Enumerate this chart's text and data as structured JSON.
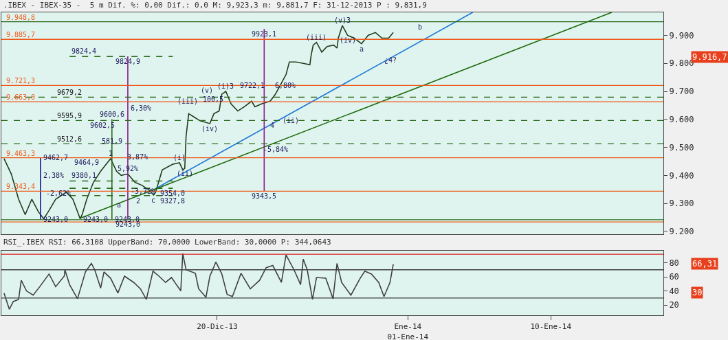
{
  "chart_data": [
    {
      "type": "line",
      "title": ".IBEX - IBEX-35 -  5 m Dif. %: 0,00 Dif.: 0,0 M: 9,923,3 m: 9,881,7 F: 31-12-2013 P : 9,831,9",
      "xlim": [
        "2013-12-06T10:00",
        "2014-01-17T02:00"
      ],
      "ylim": [
        9190,
        9982
      ],
      "yticks": [
        {
          "value": 9200,
          "label": "9.200"
        },
        {
          "value": 9300,
          "label": "9.300"
        },
        {
          "value": 9400,
          "label": "9.400"
        },
        {
          "value": 9500,
          "label": "9.500"
        },
        {
          "value": 9600,
          "label": "9.600"
        },
        {
          "value": 9700,
          "label": "9.700"
        },
        {
          "value": 9800,
          "label": "9.800"
        },
        {
          "value": 9900,
          "label": "9.900"
        }
      ],
      "tick_labels": "y",
      "grid": false,
      "series": [
        {
          "color": "#1d3d1d",
          "x": [
            "2013-12-06T14:00",
            "2013-12-07T01:00",
            "2013-12-07T12:00",
            "2013-12-07T22:00",
            "2013-12-08T08:00",
            "2013-12-08T18:00",
            "2013-12-09T02:00",
            "2013-12-09T10:00",
            "2013-12-09T20:00",
            "2013-12-10T12:00",
            "2013-12-10T22:00",
            "2013-12-11T09:00",
            "2013-12-11T12:00",
            "2013-12-11T19:00",
            "2013-12-12T05:00",
            "2013-12-12T16:00",
            "2013-12-13T02:00",
            "2013-12-13T07:00",
            "2013-12-13T16:00",
            "2013-12-13T23:00",
            "2013-12-14T09:00",
            "2013-12-14T20:00",
            "2013-12-15T06:00",
            "2013-12-15T16:00",
            "2013-12-16T00:00",
            "2013-12-16T03:00",
            "2013-12-16T13:00",
            "2013-12-17T05:00",
            "2013-12-17T15:00",
            "2013-12-17T20:00",
            "2013-12-17T23:00",
            "2013-12-18T01:00",
            "2013-12-18T05:00",
            "2013-12-18T12:00",
            "2013-12-18T22:00",
            "2013-12-19T13:00",
            "2013-12-19T19:00",
            "2013-12-20T03:00",
            "2013-12-20T07:00",
            "2013-12-20T13:00",
            "2013-12-20T21:00",
            "2013-12-21T07:00",
            "2013-12-21T17:00",
            "2013-12-22T04:00",
            "2013-12-22T09:00",
            "2013-12-22T19:00",
            "2013-12-23T08:00",
            "2013-12-23T16:00",
            "2013-12-24T00:00",
            "2013-12-24T08:00",
            "2013-12-24T13:00",
            "2013-12-24T23:00",
            "2013-12-25T10:00",
            "2013-12-25T20:00",
            "2013-12-25T22:00",
            "2013-12-26T01:00",
            "2013-12-26T06:00",
            "2013-12-26T14:00",
            "2013-12-26T22:00",
            "2013-12-27T08:00",
            "2013-12-27T13:00",
            "2013-12-27T15:00",
            "2013-12-27T21:00",
            "2013-12-28T05:00",
            "2013-12-28T15:00",
            "2013-12-29T02:00",
            "2013-12-29T12:00",
            "2013-12-29T23:00",
            "2013-12-30T09:00",
            "2013-12-30T19:00",
            "2013-12-31T02:00"
          ],
          "values": [
            9460,
            9405,
            9315,
            9260,
            9315,
            9270,
            9245,
            9275,
            9315,
            9340,
            9315,
            9245,
            9260,
            9315,
            9375,
            9415,
            9445,
            9460,
            9415,
            9400,
            9405,
            9375,
            9365,
            9350,
            9330,
            9340,
            9420,
            9440,
            9445,
            9420,
            9425,
            9540,
            9620,
            9610,
            9595,
            9585,
            9620,
            9630,
            9690,
            9700,
            9655,
            9630,
            9645,
            9665,
            9645,
            9655,
            9665,
            9690,
            9725,
            9760,
            9805,
            9805,
            9800,
            9795,
            9830,
            9865,
            9875,
            9840,
            9860,
            9865,
            9855,
            9890,
            9935,
            9900,
            9890,
            9870,
            9900,
            9910,
            9890,
            9890,
            9910
          ]
        },
        {
          "color": "#1e78d8",
          "x": [
            "2013-12-15T17:00",
            "2014-01-05T02:00"
          ],
          "values": [
            9340,
            9982
          ]
        },
        {
          "color": "#1f6b0f",
          "x": [
            "2013-12-11T09:00",
            "2014-01-13T20:00"
          ],
          "values": [
            9247,
            9982
          ]
        },
        {
          "color": "#8b1a8b",
          "x": [
            "2013-12-22T23:00",
            "2013-12-22T23:00"
          ],
          "values": [
            9923.1,
            9343.5
          ]
        },
        {
          "color": "#8b1a8b",
          "x": [
            "2013-12-14T09:00",
            "2013-12-14T09:00"
          ],
          "values": [
            9824.9,
            9243.0
          ]
        },
        {
          "color": "#1a1a9a",
          "x": [
            "2013-12-08T21:00",
            "2013-12-08T21:00"
          ],
          "values": [
            9462.7,
            9243.0
          ]
        },
        {
          "color": "#2a6a1a",
          "x": [
            "2013-12-13T09:00",
            "2013-12-13T09:00"
          ],
          "values": [
            9600.6,
            9243.0
          ]
        },
        {
          "color": "#2a6a1a",
          "line_style": "dashed",
          "x": [
            "2013-12-10T17:00",
            "2013-12-17T05:00"
          ],
          "values": [
            9824.4,
            9824.4
          ]
        },
        {
          "color": "#2a6a1a",
          "line_style": "dashed",
          "x": [
            "2013-12-10T17:00",
            "2013-12-17T05:00"
          ],
          "values": [
            9380.1,
            9380.1
          ]
        },
        {
          "color": "#2a6a1a",
          "line_style": "dashed",
          "x": [
            "2013-12-10T17:00",
            "2013-12-17T05:00"
          ],
          "values": [
            9354.0,
            9354.0
          ]
        },
        {
          "color": "#2a6a1a",
          "line_style": "dashed",
          "x": [
            "2013-12-10T17:00",
            "2013-12-17T05:00"
          ],
          "values": [
            9327.8,
            9327.8
          ]
        }
      ],
      "ref_lines": [
        {
          "axis": "y",
          "value": 9948.8,
          "label": "9.948,8",
          "color": "#2a6a1a",
          "line_style": "solid"
        },
        {
          "axis": "y",
          "value": 9885.7,
          "label": "9.885,7",
          "color": "#f05a1a",
          "line_style": "solid"
        },
        {
          "axis": "y",
          "value": 9721.3,
          "label": "9.721,3",
          "color": "#f05a1a",
          "line_style": "solid"
        },
        {
          "axis": "y",
          "value": 9679.2,
          "label": "9679,2",
          "color": "#2a6a1a",
          "line_style": "dashed"
        },
        {
          "axis": "y",
          "value": 9663.0,
          "label": "9.663,0",
          "color": "#f05a1a",
          "line_style": "solid"
        },
        {
          "axis": "y",
          "value": 9595.9,
          "label": "9595,9",
          "color": "#2a6a1a",
          "line_style": "dashed"
        },
        {
          "axis": "y",
          "value": 9512.6,
          "label": "9512,6",
          "color": "#2a6a1a",
          "line_style": "dashed"
        },
        {
          "axis": "y",
          "value": 9463.3,
          "label": "9.463,3",
          "color": "#f05a1a",
          "line_style": "solid"
        },
        {
          "axis": "y",
          "value": 9343.4,
          "label": "9.343,4",
          "color": "#f05a1a",
          "line_style": "solid"
        },
        {
          "axis": "y",
          "value": 9242,
          "label": null,
          "color": "#2a6a1a",
          "line_style": "solid"
        },
        {
          "axis": "y",
          "value": 9234,
          "label": null,
          "color": "#f05a1a",
          "line_style": "solid"
        }
      ],
      "annotations": [
        {
          "text": "(v)3",
          "x": "2013-12-27T21:00",
          "y": 9935
        },
        {
          "text": "b",
          "x": "2014-01-01T18:00",
          "y": 9948.8
        },
        {
          "text": "(iii)",
          "x": "2013-12-26T06:00",
          "y": 9875
        },
        {
          "text": "(iv)",
          "x": "2013-12-28T05:00",
          "y": 9900
        },
        {
          "text": "a",
          "x": "2013-12-29T02:00",
          "y": 9870
        },
        {
          "text": "¿4?",
          "x": "2013-12-30T22:00",
          "y": 9830
        },
        {
          "text": "9923,1",
          "x": "2013-12-22T23:00",
          "y": 9923.1
        },
        {
          "text": "(i)3",
          "x": "2013-12-20T13:00",
          "y": 9700
        },
        {
          "text": "(v)",
          "x": "2013-12-19T08:00",
          "y": 9721.3
        },
        {
          "text": "9722,1",
          "x": "2013-12-21T06:00",
          "y": 9722
        },
        {
          "text": "6,80%",
          "x": "2013-12-23T11:00",
          "y": 9722
        },
        {
          "text": "(iii)",
          "x": "2013-12-18T03:00",
          "y": 9683
        },
        {
          "text": "100,5",
          "x": "2013-12-19T18:00",
          "y": 9690
        },
        {
          "text": "4",
          "x": "2013-12-23T11:00",
          "y": 9597
        },
        {
          "text": "(ii)",
          "x": "2013-12-23T23:00",
          "y": 9597
        },
        {
          "text": "(iv)",
          "x": "2013-12-19T13:00",
          "y": 9585
        },
        {
          "text": "-5,84%",
          "x": "2013-12-23T16:00",
          "y": 9512
        },
        {
          "text": "9343,5",
          "x": "2013-12-22T23:00",
          "y": 9343.5
        },
        {
          "text": "9824,9",
          "x": "2013-12-14T09:00",
          "y": 9824.9
        },
        {
          "text": "9824,4",
          "x": "2013-12-10T17:00",
          "y": 9824.4
        },
        {
          "text": "9602,5",
          "x": "2013-12-12T19:00",
          "y": 9595.9
        },
        {
          "text": "9600,6",
          "x": "2013-12-13T09:00",
          "y": 9600.6
        },
        {
          "text": "6,30%",
          "x": "2013-12-14T09:00",
          "y": 9640
        },
        {
          "text": "581,9",
          "x": "2013-12-13T09:00",
          "y": 9540
        },
        {
          "text": "9464,9",
          "x": "2013-12-11T19:00",
          "y": 9465
        },
        {
          "text": "1",
          "x": "2013-12-13T07:00",
          "y": 9460
        },
        {
          "text": "3,87%",
          "x": "2013-12-14T04:00",
          "y": 9465
        },
        {
          "text": "(i)",
          "x": "2013-12-17T15:00",
          "y": 9445
        },
        {
          "text": "(ii)",
          "x": "2013-12-17T23:00",
          "y": 9425
        },
        {
          "text": "9462,7",
          "x": "2013-12-08T21:00",
          "y": 9462.7
        },
        {
          "text": "2,38%",
          "x": "2013-12-08T21:00",
          "y": 9400
        },
        {
          "text": "-2,62%",
          "x": "2013-12-10T00:00",
          "y": 9318
        },
        {
          "text": "9380,1",
          "x": "2013-12-10T17:00",
          "y": 9380.1
        },
        {
          "text": "9354,0",
          "x": "2013-12-17T05:00",
          "y": 9354.0
        },
        {
          "text": "9327,8",
          "x": "2013-12-17T05:00",
          "y": 9327.8
        },
        {
          "text": "a",
          "x": "2013-12-13T20:00",
          "y": 9312
        },
        {
          "text": "-3,72%",
          "x": "2013-12-14T09:00",
          "y": 9343
        },
        {
          "text": "5,92%",
          "x": "2013-12-14T09:00",
          "y": 9405
        },
        {
          "text": "2",
          "x": "2013-12-15T01:00",
          "y": 9327.6
        },
        {
          "text": "c",
          "x": "2013-12-16T00:00",
          "y": 9330
        },
        {
          "text": "9243,0",
          "x": "2013-12-08T21:00",
          "y": 9243.0
        },
        {
          "text": "9243,0",
          "x": "2013-12-11T09:00",
          "y": 9242
        },
        {
          "text": "9243,0",
          "x": "2013-12-13T09:00",
          "y": 9243.0
        },
        {
          "text": "9243,0",
          "x": "2013-12-14T09:00",
          "y": 9243.0
        },
        "9.916,7"
      ]
    },
    {
      "type": "line",
      "title": "RSI_.IBEX RSI: 66,3108 UpperBand: 70,0000 LowerBand: 30,0000 P: 344,0643",
      "xlim": [
        "2013-12-06T10:00",
        "2014-01-17T02:00"
      ],
      "xticks": [
        {
          "value": "2013-12-20",
          "label": "20-Dic-13"
        },
        {
          "value": "2014-01-01",
          "label": "Ene-14\n01-Ene-14"
        },
        {
          "value": "2014-01-10",
          "label": "10-Ene-14"
        }
      ],
      "ylim": [
        5.5,
        97
      ],
      "yticks": [
        20,
        40,
        60,
        80
      ],
      "grid": false,
      "series": [
        {
          "color": "#404040",
          "x": [
            "2013-12-06T14:00",
            "2013-12-06T22:00",
            "2013-12-07T04:00",
            "2013-12-07T12:00",
            "2013-12-07T16:00",
            "2013-12-08T00:00",
            "2013-12-08T10:00",
            "2013-12-08T20:00",
            "2013-12-09T10:00",
            "2013-12-09T20:00",
            "2013-12-10T09:00",
            "2013-12-10T10:00",
            "2013-12-10T17:00",
            "2013-12-11T05:00",
            "2013-12-11T17:00",
            "2013-12-12T02:00",
            "2013-12-12T07:00",
            "2013-12-12T16:00",
            "2013-12-12T21:00",
            "2013-12-13T07:00",
            "2013-12-13T18:00",
            "2013-12-14T04:00",
            "2013-12-14T18:00",
            "2013-12-15T04:00",
            "2013-12-15T13:00",
            "2013-12-15T23:00",
            "2013-12-16T08:00",
            "2013-12-16T18:00",
            "2013-12-17T03:00",
            "2013-12-17T17:00",
            "2013-12-17T20:00",
            "2013-12-18T01:00",
            "2013-12-18T15:00",
            "2013-12-18T20:00",
            "2013-12-19T07:00",
            "2013-12-19T13:00",
            "2013-12-19T22:00",
            "2013-12-20T07:00",
            "2013-12-20T15:00",
            "2013-12-20T23:00",
            "2013-12-21T12:00",
            "2013-12-22T02:00",
            "2013-12-22T16:00",
            "2013-12-23T02:00",
            "2013-12-23T12:00",
            "2013-12-24T01:00",
            "2013-12-24T08:00",
            "2013-12-24T20:00",
            "2013-12-25T06:00",
            "2013-12-25T10:00",
            "2013-12-25T16:00",
            "2013-12-26T00:00",
            "2013-12-26T06:00",
            "2013-12-26T20:00",
            "2013-12-27T07:00",
            "2013-12-27T13:00",
            "2013-12-27T20:00",
            "2013-12-28T10:00",
            "2013-12-29T00:00",
            "2013-12-29T07:00",
            "2013-12-29T17:00",
            "2013-12-30T04:00",
            "2013-12-30T12:00",
            "2013-12-30T21:00",
            "2013-12-31T02:00"
          ],
          "values": [
            37,
            14,
            25,
            28,
            55,
            40,
            34,
            46,
            64,
            46,
            61,
            70,
            49,
            29,
            67,
            79,
            70,
            44,
            67,
            58,
            37,
            61,
            52,
            43,
            28,
            68,
            61,
            52,
            59,
            40,
            93,
            70,
            65,
            43,
            31,
            61,
            81,
            64,
            35,
            32,
            65,
            43,
            55,
            73,
            76,
            52,
            91,
            70,
            49,
            85,
            70,
            28,
            59,
            58,
            29,
            79,
            52,
            34,
            58,
            68,
            64,
            52,
            32,
            52,
            78
          ]
        }
      ],
      "ref_lines": [
        {
          "axis": "y",
          "value": 70,
          "label": null,
          "color": "#404040",
          "line_style": "solid"
        },
        {
          "axis": "y",
          "value": 30,
          "label": null,
          "color": "#404040",
          "line_style": "solid"
        },
        {
          "axis": "y",
          "value": 92,
          "label": null,
          "color": "#e02020",
          "line_style": "solid"
        }
      ],
      "annotations": [
        "66,31",
        "30"
      ]
    }
  ]
}
